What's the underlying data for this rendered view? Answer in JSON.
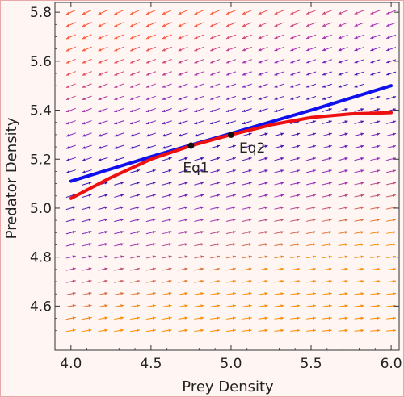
{
  "chart_data": {
    "type": "stream",
    "xlabel": "Prey Density",
    "ylabel": "Predator Density",
    "xlim": [
      3.9,
      6.05
    ],
    "ylim": [
      4.42,
      5.84
    ],
    "xticks": [
      4.0,
      4.5,
      5.0,
      5.5,
      6.0
    ],
    "xtick_labels": [
      "4.0",
      "4.5",
      "5.0",
      "5.5",
      "6.0"
    ],
    "yticks": [
      4.6,
      4.8,
      5.0,
      5.2,
      5.4,
      5.6,
      5.8
    ],
    "ytick_labels": [
      "4.6",
      "4.8",
      "5.0",
      "5.2",
      "5.4",
      "5.6",
      "5.8"
    ],
    "grid": false,
    "background_color": "#fff6f4",
    "curves": [
      {
        "id": "blue",
        "color": "#1010ee",
        "x": [
          4.0,
          4.5,
          5.0,
          5.5,
          6.0
        ],
        "y": [
          5.11,
          5.21,
          5.305,
          5.4,
          5.5
        ]
      },
      {
        "id": "red",
        "color": "#ee1010",
        "x": [
          4.0,
          4.25,
          4.5,
          4.75,
          5.0,
          5.25,
          5.5,
          5.75,
          6.0
        ],
        "y": [
          5.04,
          5.125,
          5.2,
          5.255,
          5.3,
          5.34,
          5.37,
          5.385,
          5.39
        ]
      }
    ],
    "points": [
      {
        "x": 4.75,
        "y": 5.255,
        "label": "Eq1"
      },
      {
        "x": 5.0,
        "y": 5.3,
        "label": "Eq2"
      }
    ],
    "colors": {
      "low": "#ff8c00",
      "mid": "#9b30c0",
      "high": "#ff5a3c",
      "core": "#3010b0"
    }
  }
}
